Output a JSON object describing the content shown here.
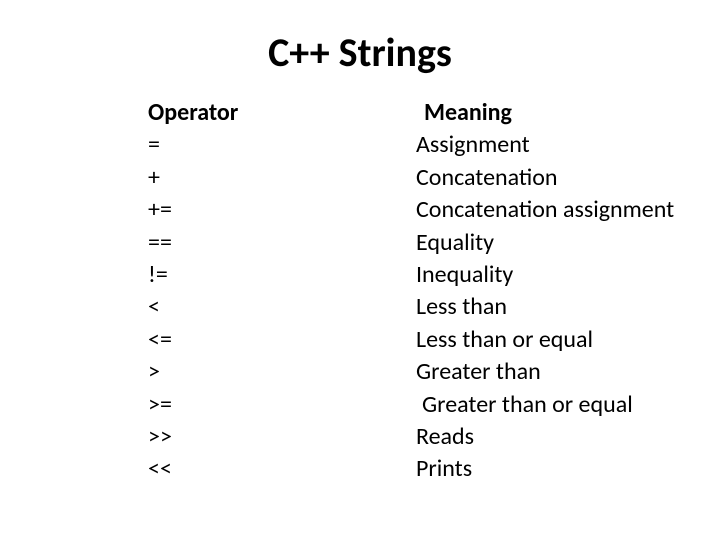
{
  "title": "C++ Strings",
  "headers": {
    "operator": "Operator",
    "meaning": "Meaning"
  },
  "rows": [
    {
      "operator": "=",
      "meaning": "Assignment"
    },
    {
      "operator": "+",
      "meaning": "Concatenation"
    },
    {
      "operator": "+=",
      "meaning": "Concatenation assignment"
    },
    {
      "operator": "==",
      "meaning": "Equality"
    },
    {
      "operator": "!=",
      "meaning": "Inequality"
    },
    {
      "operator": "<",
      "meaning": "Less than"
    },
    {
      "operator": "<=",
      "meaning": "Less than or equal"
    },
    {
      "operator": ">",
      "meaning": "Greater than"
    },
    {
      "operator": ">=",
      "meaning": "Greater than or equal"
    },
    {
      "operator": ">>",
      "meaning": "Reads"
    },
    {
      "operator": "<<",
      "meaning": "Prints"
    }
  ],
  "colors": {
    "background": "#ffffff",
    "text": "#000000"
  },
  "fonts": {
    "title_size": 40,
    "body_size": 24,
    "family": "Calibri"
  }
}
